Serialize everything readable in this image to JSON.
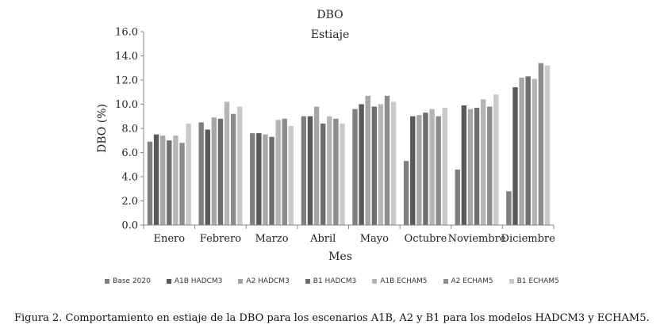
{
  "chart_data": {
    "type": "bar",
    "title": "DBO",
    "subtitle": "Estiaje",
    "xlabel": "Mes",
    "ylabel": "DBO (%)",
    "ylim": [
      0,
      16
    ],
    "yticks": [
      "0.0",
      "2.0",
      "4.0",
      "6.0",
      "8.0",
      "10.0",
      "12.0",
      "14.0",
      "16.0"
    ],
    "grid": false,
    "legend_position": "bottom",
    "categories": [
      "Enero",
      "Febrero",
      "Marzo",
      "Abril",
      "Mayo",
      "Octubre",
      "Noviembre",
      "Diciembre"
    ],
    "series": [
      {
        "name": "Base 2020",
        "color": "#7f7f7f",
        "values": [
          6.9,
          8.5,
          7.6,
          9.0,
          9.6,
          5.3,
          4.6,
          2.8
        ]
      },
      {
        "name": "A1B HADCM3",
        "color": "#595959",
        "values": [
          7.5,
          7.9,
          7.6,
          9.0,
          10.0,
          9.0,
          9.9,
          11.4
        ]
      },
      {
        "name": "A2 HADCM3",
        "color": "#a6a6a6",
        "values": [
          7.4,
          8.9,
          7.5,
          9.8,
          10.7,
          9.1,
          9.6,
          12.2
        ]
      },
      {
        "name": "B1 HADCM3",
        "color": "#6e6e6e",
        "values": [
          7.0,
          8.8,
          7.3,
          8.4,
          9.8,
          9.3,
          9.7,
          12.3
        ]
      },
      {
        "name": "A1B ECHAM5",
        "color": "#b5b5b5",
        "values": [
          7.4,
          10.2,
          8.7,
          9.0,
          10.0,
          9.6,
          10.4,
          12.1
        ]
      },
      {
        "name": "A2 ECHAM5",
        "color": "#8c8c8c",
        "values": [
          6.8,
          9.2,
          8.8,
          8.8,
          10.7,
          9.0,
          9.8,
          13.4
        ]
      },
      {
        "name": "B1 ECHAM5",
        "color": "#c9c9c9",
        "values": [
          8.4,
          9.8,
          8.2,
          8.4,
          10.2,
          9.7,
          10.8,
          13.2
        ]
      }
    ]
  },
  "caption": "Figura 2. Comportamiento en estiaje de la DBO para los escenarios A1B, A2 y B1 para los modelos HADCM3 y ECHAM5."
}
